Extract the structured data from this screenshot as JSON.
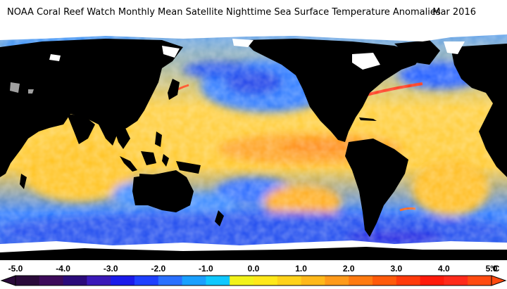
{
  "title": "NOAA Coral Reef Watch Monthly Mean Satellite Nighttime Sea Surface Temperature Anomalies",
  "date": "Mar 2016",
  "legend": {
    "unit": "°C",
    "ticks": [
      "-5.0",
      "-4.0",
      "-3.0",
      "-2.0",
      "-1.0",
      "0.0",
      "1.0",
      "2.0",
      "3.0",
      "4.0",
      "5.0"
    ],
    "range": [
      -5.0,
      5.0
    ],
    "colors": [
      "#2a0a3a",
      "#3d0a5a",
      "#2b0a7a",
      "#3a18b8",
      "#1a1aea",
      "#1e40ff",
      "#2a70ff",
      "#1aa0ff",
      "#10c8ff",
      "#f2f21a",
      "#ffe81a",
      "#ffd21a",
      "#ffb81a",
      "#ff9a1a",
      "#ff7a10",
      "#ff5a0a",
      "#ff3a0a",
      "#ff1a0a",
      "#ff2a1a",
      "#ff4a10"
    ]
  },
  "colors": {
    "land": "#000000",
    "ice": "#ffffff",
    "no_data": "#a0a0a0",
    "anomaly_cool": "#1a7aff",
    "anomaly_warm": "#ffb81a",
    "anomaly_hot": "#ff5a0a"
  }
}
